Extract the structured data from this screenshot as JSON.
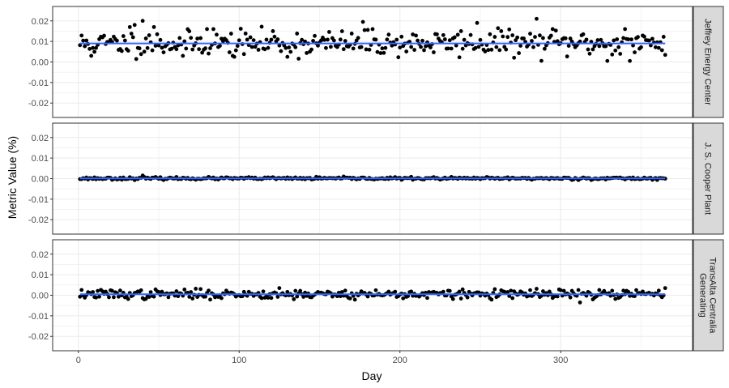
{
  "chart_data": {
    "type": "scatter",
    "xlabel": "Day",
    "ylabel": "Metric Value (%)",
    "xlim": [
      -16,
      382
    ],
    "ylim": [
      -0.027,
      0.027
    ],
    "x_ticks": [
      0,
      100,
      200,
      300
    ],
    "x_tick_labels": [
      "0",
      "100",
      "200",
      "300"
    ],
    "x_minor_ticks": [
      50,
      150,
      250,
      350
    ],
    "y_ticks": [
      -0.02,
      -0.01,
      0.0,
      0.01,
      0.02
    ],
    "y_tick_labels": [
      "-0.02",
      "-0.01",
      "0.00",
      "0.01",
      "0.02"
    ],
    "y_minor_ticks": [
      -0.015,
      -0.005,
      0.005,
      0.015
    ],
    "grid": true,
    "facet_layout": "rows",
    "strip_position": "right",
    "colors": {
      "points": "#000000",
      "trend": "#3366ff",
      "grid": "#ebebeb",
      "panel_border": "#333333",
      "strip_fill": "#d9d9d9"
    },
    "x_range": [
      1,
      365
    ],
    "point_size": 2.4,
    "panels": [
      {
        "name": "Jeffrey Energy Center",
        "strip_lines": [
          "Jeffrey Energy Center"
        ],
        "trend": [
          [
            1,
            0.009
          ],
          [
            365,
            0.009
          ]
        ],
        "point_stats": {
          "mean": 0.009,
          "sd": 0.003
        },
        "seed": 11,
        "highlight_points": [
          [
            8,
            0.003
          ],
          [
            32,
            0.017
          ],
          [
            35,
            0.018
          ],
          [
            40,
            0.02
          ],
          [
            44,
            0.013
          ],
          [
            47,
            0.017
          ],
          [
            65,
            0.003
          ],
          [
            80,
            0.016
          ],
          [
            84,
            0.016
          ],
          [
            97,
            0.0025
          ],
          [
            121,
            0.015
          ],
          [
            130,
            0.0025
          ],
          [
            177,
            0.0195
          ],
          [
            183,
            0.016
          ],
          [
            238,
            0.015
          ],
          [
            248,
            0.019
          ],
          [
            263,
            0.015
          ],
          [
            270,
            0.013
          ],
          [
            285,
            0.021
          ],
          [
            295,
            0.016
          ],
          [
            329,
            0.0005
          ],
          [
            340,
            0.016
          ],
          [
            343,
            0.0005
          ]
        ]
      },
      {
        "name": "J. S. Cooper Plant",
        "strip_lines": [
          "J. S. Cooper Plant"
        ],
        "trend": [
          [
            1,
            0.0001
          ],
          [
            365,
            0.0001
          ]
        ],
        "point_stats": {
          "mean": 0.0001,
          "sd": 0.0003
        },
        "seed": 23,
        "highlight_points": [
          [
            40,
            0.0015
          ]
        ]
      },
      {
        "name": "TransAlta Centralia Generating",
        "strip_lines": [
          "TransAlta Centralia",
          "Generating"
        ],
        "trend": [
          [
            1,
            0.0005
          ],
          [
            365,
            0.0005
          ]
        ],
        "point_stats": {
          "mean": 0.0005,
          "sd": 0.0011
        },
        "seed": 37,
        "highlight_points": [
          [
            41,
            -0.002
          ],
          [
            125,
            0.0035
          ],
          [
            312,
            -0.0035
          ],
          [
            320,
            -0.002
          ],
          [
            365,
            0.0035
          ]
        ]
      }
    ]
  }
}
